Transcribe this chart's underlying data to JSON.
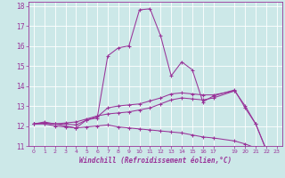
{
  "xlabel": "Windchill (Refroidissement éolien,°C)",
  "background_color": "#cce8e8",
  "line_color": "#993399",
  "grid_color": "#ffffff",
  "xlim": [
    -0.5,
    23.5
  ],
  "ylim": [
    11,
    18.2
  ],
  "yticks": [
    11,
    12,
    13,
    14,
    15,
    16,
    17,
    18
  ],
  "xticks": [
    0,
    1,
    2,
    3,
    4,
    5,
    6,
    7,
    8,
    9,
    10,
    11,
    12,
    13,
    14,
    15,
    16,
    17,
    19,
    20,
    21,
    22,
    23
  ],
  "series1": [
    [
      0,
      12.1
    ],
    [
      1,
      12.2
    ],
    [
      2,
      12.1
    ],
    [
      3,
      12.0
    ],
    [
      4,
      11.9
    ],
    [
      5,
      12.3
    ],
    [
      6,
      12.4
    ],
    [
      7,
      15.5
    ],
    [
      8,
      15.9
    ],
    [
      9,
      16.0
    ],
    [
      10,
      17.8
    ],
    [
      11,
      17.85
    ],
    [
      12,
      16.5
    ],
    [
      13,
      14.5
    ],
    [
      14,
      15.2
    ],
    [
      15,
      14.8
    ],
    [
      16,
      13.2
    ],
    [
      17,
      13.5
    ],
    [
      19,
      13.8
    ],
    [
      20,
      12.9
    ],
    [
      21,
      12.1
    ],
    [
      22,
      10.8
    ],
    [
      23,
      10.7
    ]
  ],
  "series2": [
    [
      0,
      12.1
    ],
    [
      1,
      12.15
    ],
    [
      2,
      12.1
    ],
    [
      3,
      12.1
    ],
    [
      4,
      12.05
    ],
    [
      5,
      12.3
    ],
    [
      6,
      12.45
    ],
    [
      7,
      12.9
    ],
    [
      8,
      13.0
    ],
    [
      9,
      13.05
    ],
    [
      10,
      13.1
    ],
    [
      11,
      13.25
    ],
    [
      12,
      13.4
    ],
    [
      13,
      13.6
    ],
    [
      14,
      13.65
    ],
    [
      15,
      13.6
    ],
    [
      16,
      13.55
    ],
    [
      17,
      13.55
    ],
    [
      19,
      13.75
    ]
  ],
  "series3": [
    [
      0,
      12.1
    ],
    [
      1,
      12.12
    ],
    [
      2,
      12.1
    ],
    [
      3,
      12.15
    ],
    [
      4,
      12.2
    ],
    [
      5,
      12.35
    ],
    [
      6,
      12.5
    ],
    [
      7,
      12.6
    ],
    [
      8,
      12.65
    ],
    [
      9,
      12.7
    ],
    [
      10,
      12.8
    ],
    [
      11,
      12.9
    ],
    [
      12,
      13.1
    ],
    [
      13,
      13.3
    ],
    [
      14,
      13.4
    ],
    [
      15,
      13.35
    ],
    [
      16,
      13.3
    ],
    [
      17,
      13.4
    ],
    [
      19,
      13.75
    ],
    [
      20,
      13.0
    ],
    [
      21,
      12.1
    ],
    [
      22,
      10.8
    ],
    [
      23,
      10.7
    ]
  ],
  "series4": [
    [
      0,
      12.1
    ],
    [
      1,
      12.1
    ],
    [
      2,
      12.0
    ],
    [
      3,
      11.95
    ],
    [
      4,
      11.9
    ],
    [
      5,
      11.95
    ],
    [
      6,
      12.0
    ],
    [
      7,
      12.05
    ],
    [
      8,
      11.95
    ],
    [
      9,
      11.9
    ],
    [
      10,
      11.85
    ],
    [
      11,
      11.8
    ],
    [
      12,
      11.75
    ],
    [
      13,
      11.7
    ],
    [
      14,
      11.65
    ],
    [
      15,
      11.55
    ],
    [
      16,
      11.45
    ],
    [
      17,
      11.4
    ],
    [
      19,
      11.25
    ],
    [
      20,
      11.1
    ],
    [
      21,
      10.9
    ],
    [
      22,
      10.75
    ],
    [
      23,
      10.7
    ]
  ]
}
